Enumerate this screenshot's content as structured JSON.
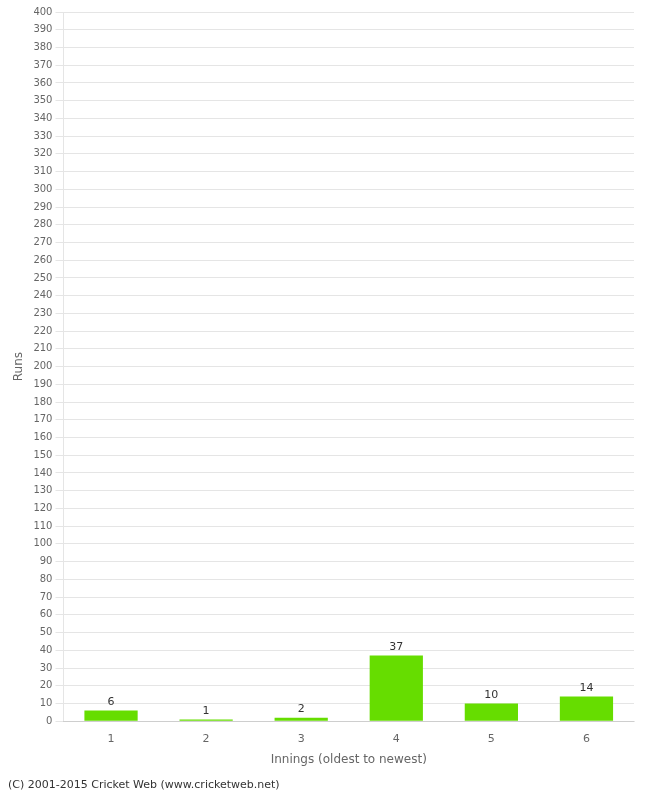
{
  "chart_data": {
    "type": "bar",
    "categories": [
      1,
      2,
      3,
      4,
      5,
      6
    ],
    "values": [
      6,
      1,
      2,
      37,
      10,
      14
    ],
    "color": "#66dd00",
    "xlabel": "Innings (oldest to newest)",
    "ylabel": "Runs",
    "ylim": [
      0,
      400
    ],
    "yticks": [
      0,
      10,
      20,
      30,
      40,
      50,
      60,
      70,
      80,
      90,
      100,
      110,
      120,
      130,
      140,
      150,
      160,
      170,
      180,
      190,
      200,
      210,
      220,
      230,
      240,
      250,
      260,
      270,
      280,
      290,
      300,
      310,
      320,
      330,
      340,
      350,
      360,
      370,
      380,
      390,
      400
    ],
    "grid": true,
    "data_labels": true,
    "annotations": [
      "(C) 2001-2015 Cricket Web (www.cricketweb.net)"
    ]
  }
}
